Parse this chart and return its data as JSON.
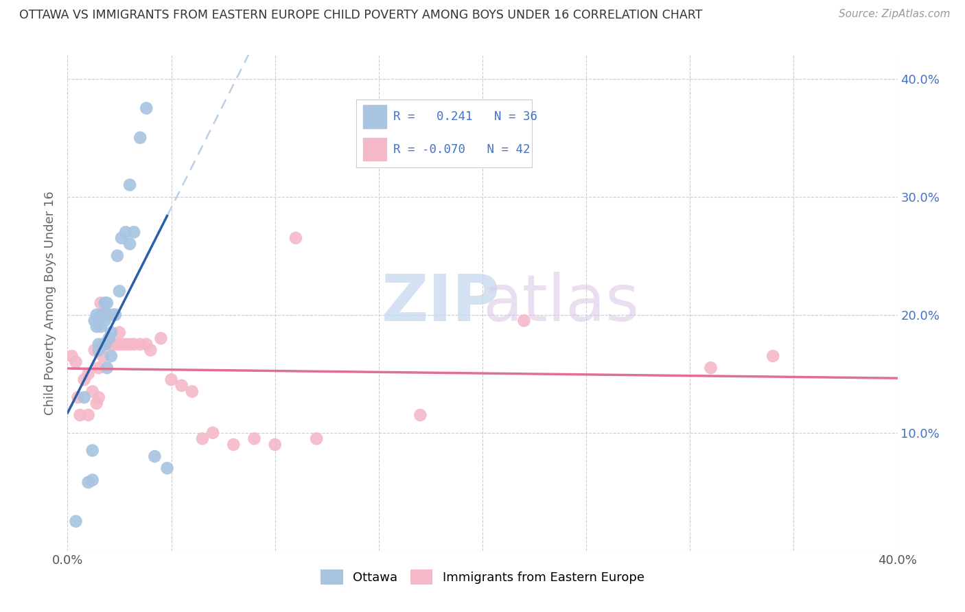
{
  "title": "OTTAWA VS IMMIGRANTS FROM EASTERN EUROPE CHILD POVERTY AMONG BOYS UNDER 16 CORRELATION CHART",
  "source": "Source: ZipAtlas.com",
  "ylabel": "Child Poverty Among Boys Under 16",
  "xlim": [
    0.0,
    0.4
  ],
  "ylim": [
    0.0,
    0.42
  ],
  "legend_ottawa_r": "0.241",
  "legend_ottawa_n": "36",
  "legend_imm_r": "-0.070",
  "legend_imm_n": "42",
  "blue_color": "#a8c4e0",
  "pink_color": "#f4b8c8",
  "blue_line_color": "#2a5fa8",
  "pink_line_color": "#e07090",
  "blue_dashed_color": "#b8d0e8",
  "ottawa_x": [
    0.004,
    0.008,
    0.01,
    0.012,
    0.012,
    0.013,
    0.014,
    0.014,
    0.015,
    0.015,
    0.016,
    0.016,
    0.017,
    0.017,
    0.018,
    0.018,
    0.018,
    0.019,
    0.019,
    0.02,
    0.02,
    0.021,
    0.021,
    0.022,
    0.023,
    0.024,
    0.025,
    0.026,
    0.028,
    0.03,
    0.03,
    0.032,
    0.035,
    0.038,
    0.042,
    0.048
  ],
  "ottawa_y": [
    0.025,
    0.13,
    0.058,
    0.06,
    0.085,
    0.195,
    0.19,
    0.2,
    0.17,
    0.175,
    0.19,
    0.2,
    0.175,
    0.2,
    0.175,
    0.21,
    0.195,
    0.155,
    0.21,
    0.18,
    0.2,
    0.185,
    0.165,
    0.2,
    0.2,
    0.25,
    0.22,
    0.265,
    0.27,
    0.31,
    0.26,
    0.27,
    0.35,
    0.375,
    0.08,
    0.07
  ],
  "imm_x": [
    0.002,
    0.004,
    0.005,
    0.006,
    0.008,
    0.01,
    0.01,
    0.012,
    0.013,
    0.014,
    0.015,
    0.015,
    0.016,
    0.017,
    0.018,
    0.019,
    0.02,
    0.022,
    0.024,
    0.025,
    0.026,
    0.028,
    0.03,
    0.032,
    0.035,
    0.038,
    0.04,
    0.045,
    0.05,
    0.055,
    0.06,
    0.065,
    0.07,
    0.08,
    0.09,
    0.1,
    0.11,
    0.12,
    0.17,
    0.22,
    0.31,
    0.34
  ],
  "imm_y": [
    0.165,
    0.16,
    0.13,
    0.115,
    0.145,
    0.15,
    0.115,
    0.135,
    0.17,
    0.125,
    0.13,
    0.155,
    0.21,
    0.165,
    0.2,
    0.175,
    0.18,
    0.175,
    0.175,
    0.185,
    0.175,
    0.175,
    0.175,
    0.175,
    0.175,
    0.175,
    0.17,
    0.18,
    0.145,
    0.14,
    0.135,
    0.095,
    0.1,
    0.09,
    0.095,
    0.09,
    0.265,
    0.095,
    0.115,
    0.195,
    0.155,
    0.165
  ]
}
